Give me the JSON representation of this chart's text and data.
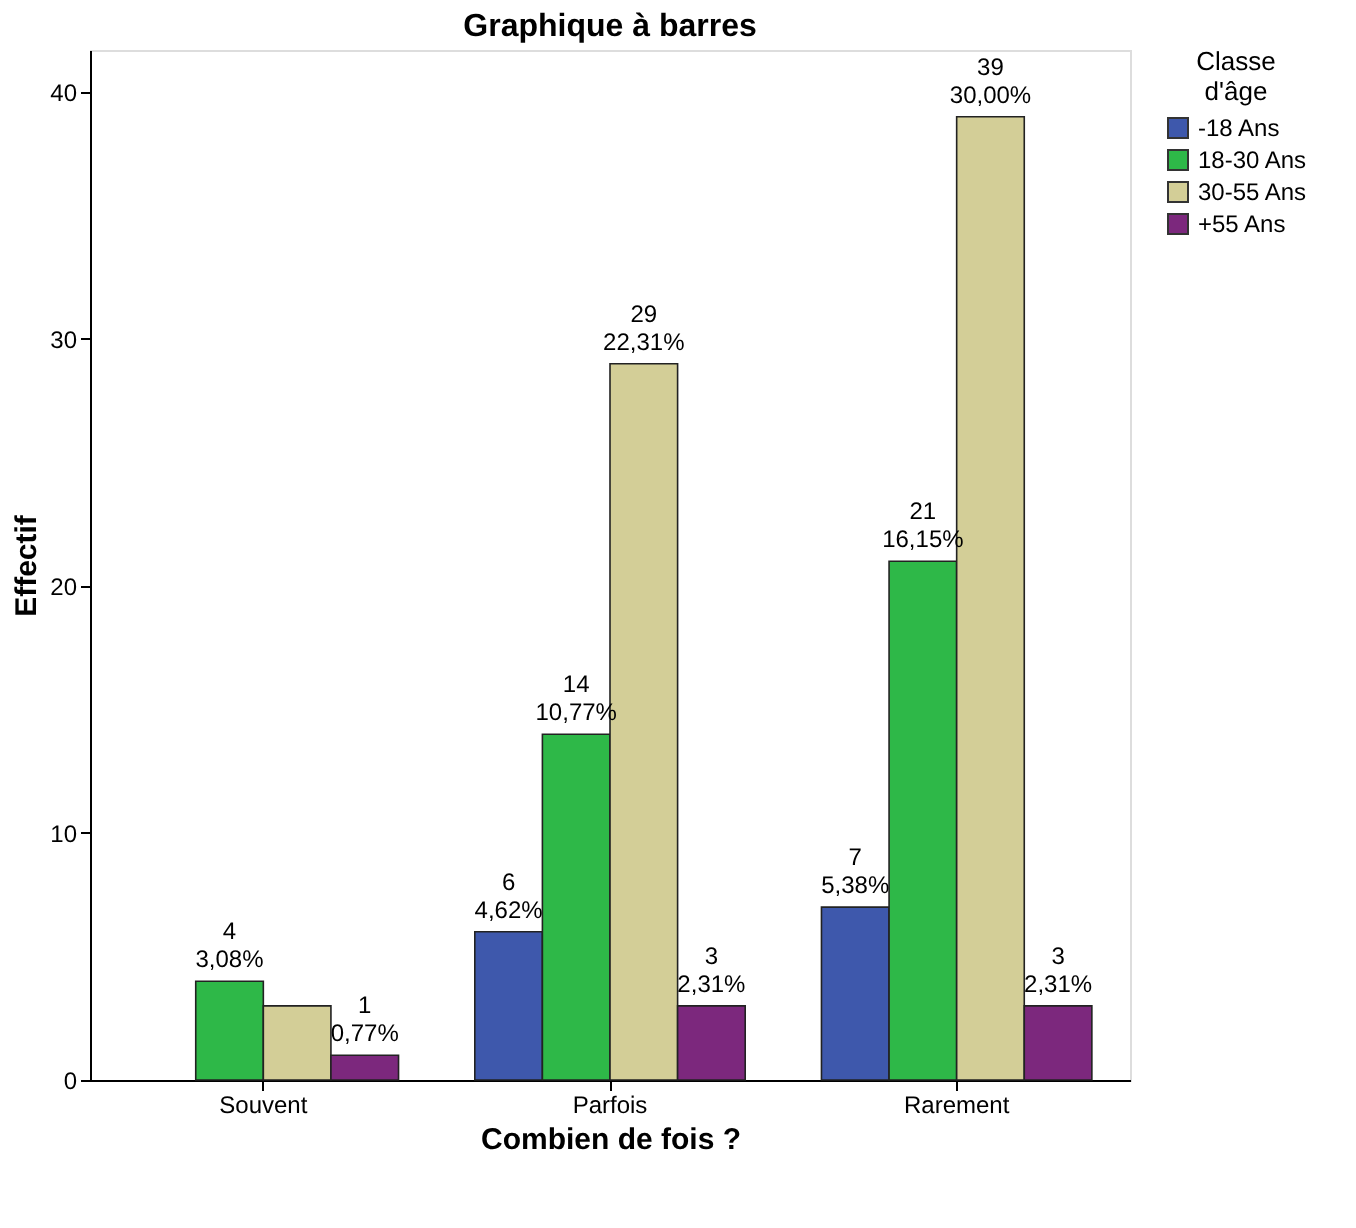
{
  "chart_data": {
    "type": "bar",
    "title": "Graphique à barres",
    "xlabel": "Combien de fois ?",
    "ylabel": "Effectif",
    "legend_title": "Classe d'âge",
    "legend": "right",
    "grid": false,
    "categories": [
      "Souvent",
      "Parfois",
      "Rarement"
    ],
    "ylim": [
      0,
      41.7
    ],
    "yticks": [
      0,
      10,
      20,
      30,
      40
    ],
    "series": [
      {
        "name": "-18 Ans",
        "color": "#3e58ac",
        "values": [
          null,
          6,
          7
        ],
        "value_labels": [
          null,
          "6\n4,62%",
          "7\n5,38%"
        ]
      },
      {
        "name": "18-30 Ans",
        "color": "#2eb848",
        "values": [
          4,
          14,
          21
        ],
        "value_labels": [
          "4\n3,08%",
          "14\n10,77%",
          "21\n16,15%"
        ]
      },
      {
        "name": "30-55 Ans",
        "color": "#d3ce97",
        "values": [
          3,
          29,
          39
        ],
        "value_labels": [
          null,
          "29\n22,31%",
          "39\n30,00%"
        ]
      },
      {
        "name": "+55 Ans",
        "color": "#7c287d",
        "values": [
          1,
          3,
          3
        ],
        "value_labels": [
          "1\n0,77%",
          "3\n2,31%",
          "3\n2,31%"
        ]
      }
    ]
  }
}
